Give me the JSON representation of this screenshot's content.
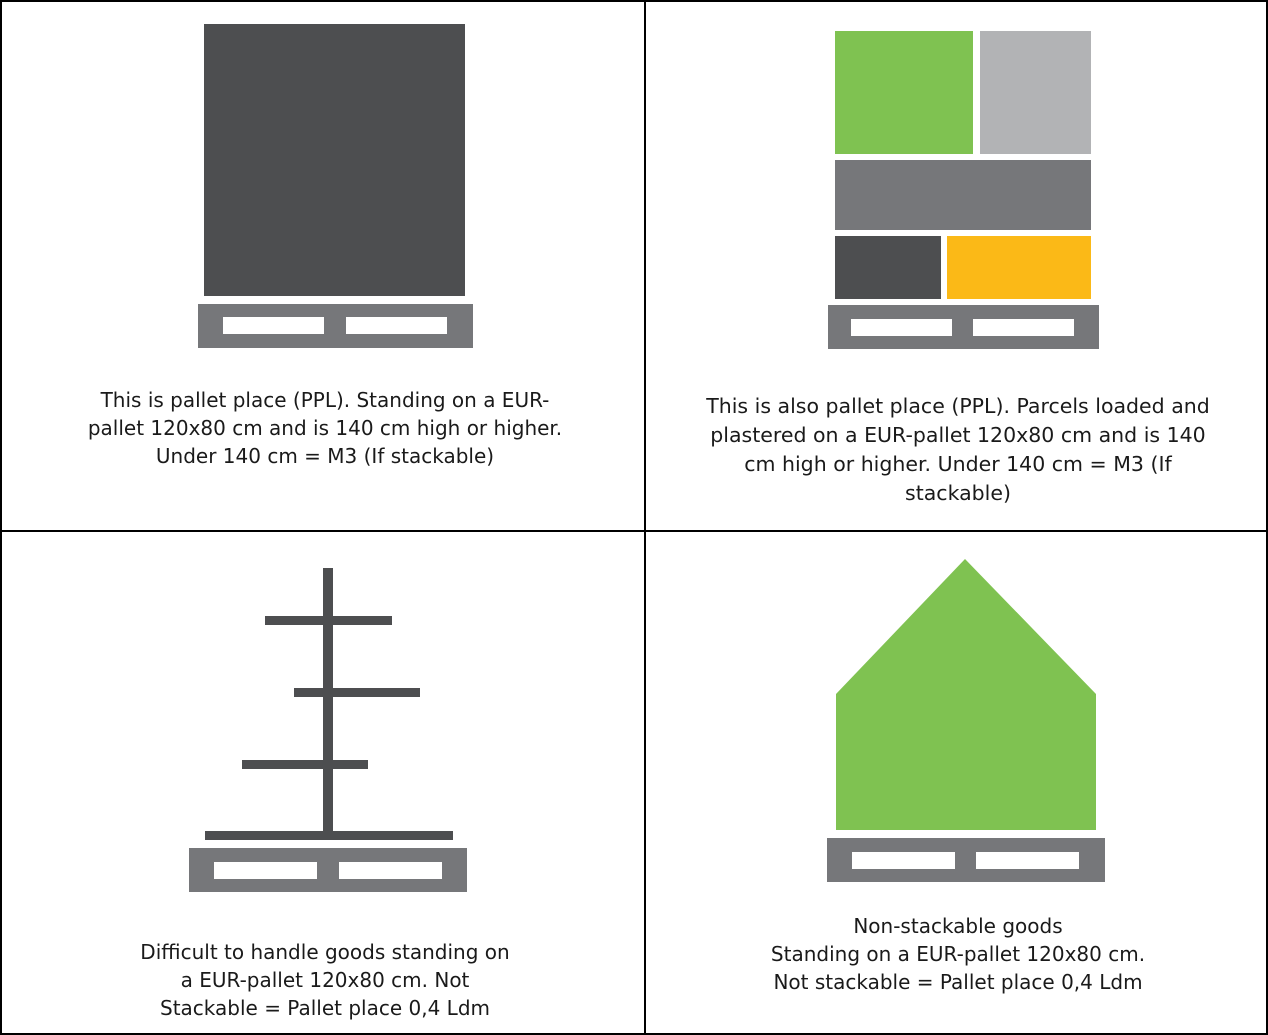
{
  "cells": [
    {
      "caption": "This is pallet place (PPL). Standing on a EUR-\npallet 120x80 cm and is 140 cm high or higher.\nUnder 140 cm = M3 (If stackable)",
      "icon": "solid-load-on-pallet"
    },
    {
      "caption": "This is also pallet place (PPL). Parcels loaded and\nplastered on a EUR-pallet 120x80 cm and is 140\ncm high or higher. Under 140 cm = M3 (If\nstackable)",
      "icon": "parcels-on-pallet"
    },
    {
      "caption": "Difficult to handle goods standing on\na EUR-pallet 120x80 cm. Not\nStackable = Pallet place 0,4 Ldm",
      "icon": "irregular-goods-on-pallet"
    },
    {
      "caption": "Non-stackable goods\nStanding on a EUR-pallet 120x80 cm.\nNot stackable = Pallet place 0,4 Ldm",
      "icon": "non-stackable-goods-on-pallet"
    }
  ],
  "colors": {
    "dark_gray": "#4d4e50",
    "mid_gray": "#76777a",
    "light_gray": "#b2b3b5",
    "green": "#7fc251",
    "yellow": "#fbb917",
    "border": "#000000"
  }
}
